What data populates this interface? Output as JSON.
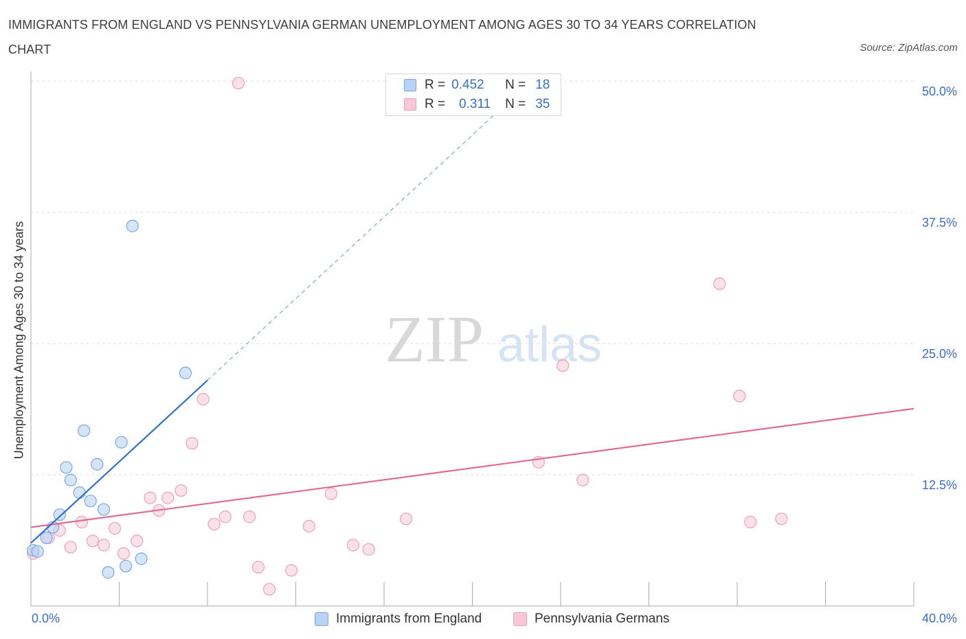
{
  "title": "IMMIGRANTS FROM ENGLAND VS PENNSYLVANIA GERMAN UNEMPLOYMENT AMONG AGES 30 TO 34 YEARS CORRELATION CHART",
  "source": "Source: ZipAtlas.com",
  "watermark": {
    "zip": "ZIP",
    "atlas": "atlas"
  },
  "legend": {
    "r_label": "R =",
    "n_label": "N =",
    "series1": {
      "r": "0.452",
      "n": "18"
    },
    "series2": {
      "r": "0.311",
      "n": "35"
    }
  },
  "colors": {
    "blue_fill": "#b8d3f5",
    "blue_stroke": "#7aa7e0",
    "blue_line": "#2e6fd0",
    "pink_fill": "#f8c8d6",
    "pink_stroke": "#eea0b8",
    "pink_line": "#e06a92",
    "tick_text": "#3a6fc4",
    "grid": "#dcdcdc"
  },
  "chart_data": {
    "type": "scatter",
    "title": "IMMIGRANTS FROM ENGLAND VS PENNSYLVANIA GERMAN UNEMPLOYMENT AMONG AGES 30 TO 34 YEARS CORRELATION CHART",
    "xlabel": "",
    "ylabel": "Unemployment Among Ages 30 to 34 years",
    "xlim": [
      0,
      40
    ],
    "ylim": [
      0,
      50
    ],
    "x_tick_labels": [
      {
        "value": 0,
        "label": "0.0%"
      },
      {
        "value": 40,
        "label": "40.0%"
      }
    ],
    "y_tick_labels": [
      {
        "value": 12.5,
        "label": "12.5%"
      },
      {
        "value": 25,
        "label": "25.0%"
      },
      {
        "value": 37.5,
        "label": "37.5%"
      },
      {
        "value": 50,
        "label": "50.0%"
      }
    ],
    "series": [
      {
        "name": "Immigrants from England",
        "r": 0.452,
        "n": 18,
        "points": [
          [
            0.1,
            5.3
          ],
          [
            0.3,
            5.2
          ],
          [
            0.7,
            6.5
          ],
          [
            1.0,
            7.5
          ],
          [
            1.3,
            8.7
          ],
          [
            1.6,
            13.2
          ],
          [
            1.8,
            12.0
          ],
          [
            2.2,
            10.8
          ],
          [
            2.4,
            16.7
          ],
          [
            2.7,
            10.0
          ],
          [
            3.0,
            13.5
          ],
          [
            3.3,
            9.2
          ],
          [
            3.5,
            3.2
          ],
          [
            4.1,
            15.6
          ],
          [
            4.3,
            3.8
          ],
          [
            4.6,
            36.2
          ],
          [
            5.0,
            4.5
          ],
          [
            7.0,
            22.2
          ]
        ],
        "trend": {
          "x": [
            0,
            8.0
          ],
          "y": [
            6.0,
            21.5
          ],
          "dashed_extension": {
            "x": [
              8.0,
              21.0
            ],
            "y": [
              21.5,
              46.8
            ]
          }
        }
      },
      {
        "name": "Pennsylvania Germans",
        "r": 0.311,
        "n": 35,
        "points": [
          [
            0.1,
            5.0
          ],
          [
            0.8,
            6.5
          ],
          [
            1.3,
            7.2
          ],
          [
            1.8,
            5.6
          ],
          [
            2.3,
            8.0
          ],
          [
            2.8,
            6.2
          ],
          [
            3.3,
            5.8
          ],
          [
            3.8,
            7.4
          ],
          [
            4.2,
            5.0
          ],
          [
            4.8,
            6.2
          ],
          [
            5.4,
            10.3
          ],
          [
            5.8,
            9.1
          ],
          [
            6.2,
            10.3
          ],
          [
            6.8,
            11.0
          ],
          [
            7.3,
            15.5
          ],
          [
            7.8,
            19.7
          ],
          [
            8.3,
            7.8
          ],
          [
            8.8,
            8.5
          ],
          [
            9.4,
            49.8
          ],
          [
            9.9,
            8.5
          ],
          [
            10.3,
            3.7
          ],
          [
            10.8,
            1.6
          ],
          [
            11.8,
            3.4
          ],
          [
            12.6,
            7.6
          ],
          [
            13.6,
            10.7
          ],
          [
            14.6,
            5.8
          ],
          [
            15.3,
            5.4
          ],
          [
            17.0,
            8.3
          ],
          [
            23.0,
            13.7
          ],
          [
            24.1,
            22.9
          ],
          [
            25.0,
            12.0
          ],
          [
            31.2,
            30.7
          ],
          [
            32.1,
            20.0
          ],
          [
            32.6,
            8.0
          ],
          [
            34.0,
            8.3
          ]
        ],
        "trend": {
          "x": [
            0,
            40
          ],
          "y": [
            7.5,
            18.8
          ]
        }
      }
    ],
    "legend_position": "top-center",
    "grid": true
  }
}
